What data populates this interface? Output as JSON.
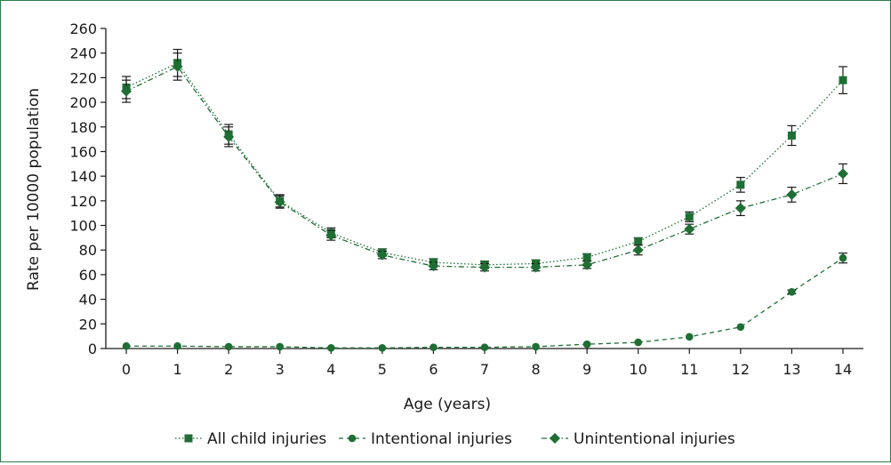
{
  "colors": {
    "series": "#1f6e34",
    "axis": "#1a1a1a",
    "frame": "#2e7d4a",
    "errorbar": "#1a1a1a"
  },
  "chart_data": {
    "type": "line",
    "title": "",
    "xlabel": "Age (years)",
    "ylabel": "Rate per 10000 population",
    "x": [
      0,
      1,
      2,
      3,
      4,
      5,
      6,
      7,
      8,
      9,
      10,
      11,
      12,
      13,
      14
    ],
    "x_tick_labels": [
      "0",
      "1",
      "2",
      "3",
      "4",
      "5",
      "6",
      "7",
      "8",
      "9",
      "10",
      "11",
      "12",
      "13",
      "14"
    ],
    "y_ticks": [
      0,
      20,
      40,
      60,
      80,
      100,
      120,
      140,
      160,
      180,
      200,
      220,
      240,
      260
    ],
    "y_tick_labels": [
      "0",
      "20",
      "40",
      "60",
      "80",
      "100",
      "120",
      "140",
      "160",
      "180",
      "200",
      "220",
      "240",
      "260"
    ],
    "xlim": [
      -0.4,
      14.4
    ],
    "ylim": [
      0,
      260
    ],
    "grid": false,
    "legend_position": "bottom",
    "series": [
      {
        "name": "All child injuries",
        "marker": "square",
        "line_style": "dotted",
        "values": [
          212,
          232,
          174,
          120,
          94,
          78,
          70,
          68,
          69,
          74,
          87,
          107,
          133,
          173,
          218
        ],
        "err": [
          9,
          11,
          8,
          5,
          4,
          3,
          3,
          3,
          3,
          3,
          3,
          4,
          6,
          8,
          11
        ]
      },
      {
        "name": "Intentional injuries",
        "marker": "circle",
        "line_style": "dashed",
        "values": [
          2,
          2,
          1.5,
          1.5,
          0.5,
          0.5,
          1,
          1,
          1.5,
          3.5,
          5,
          9.5,
          17.5,
          46,
          73.5
        ],
        "err": [
          0,
          0,
          0,
          0,
          0,
          0,
          0,
          0,
          0,
          0,
          0,
          0,
          0,
          1.5,
          4
        ]
      },
      {
        "name": "Unintentional injuries",
        "marker": "diamond",
        "line_style": "dash-dot",
        "values": [
          209,
          229,
          172,
          119,
          92,
          76,
          67,
          66,
          66,
          68,
          80,
          97,
          114,
          125,
          142
        ],
        "err": [
          9,
          11,
          8,
          5,
          4,
          3,
          3,
          3,
          3,
          3,
          4,
          4,
          6,
          6,
          8
        ]
      }
    ]
  }
}
